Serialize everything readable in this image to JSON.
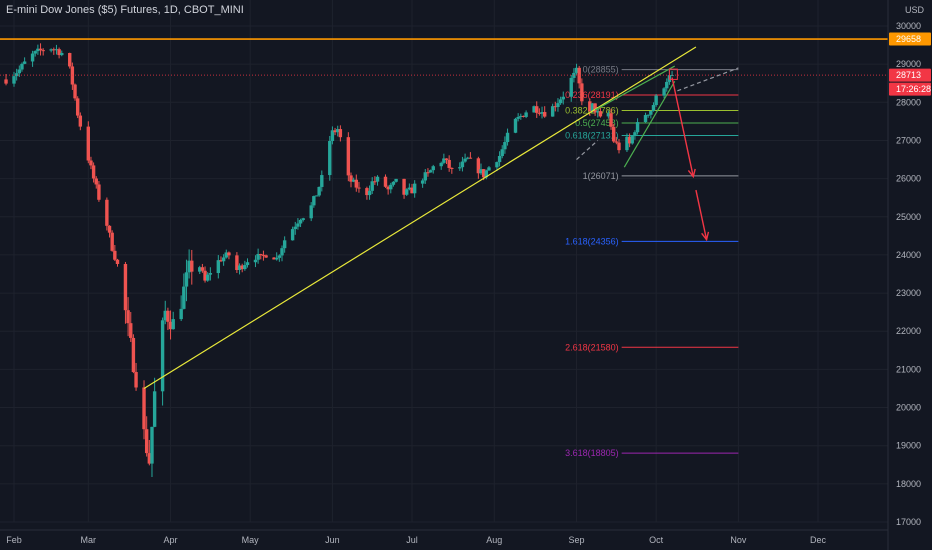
{
  "chart_data": {
    "type": "candlestick",
    "title": "E-mini Dow Jones ($5) Futures, 1D, CBOT_MINI",
    "currency": "USD",
    "ylim": [
      16900,
      30300
    ],
    "xlim": [
      0,
      297
    ],
    "grid": true,
    "y_ticks": [
      17000,
      18000,
      19000,
      20000,
      21000,
      22000,
      23000,
      24000,
      25000,
      26000,
      27000,
      28000,
      29000,
      30000
    ],
    "x_ticks": [
      {
        "label": "Feb",
        "day": 0
      },
      {
        "label": "Mar",
        "day": 28
      },
      {
        "label": "Apr",
        "day": 59
      },
      {
        "label": "May",
        "day": 89
      },
      {
        "label": "Jun",
        "day": 120
      },
      {
        "label": "Jul",
        "day": 150
      },
      {
        "label": "Aug",
        "day": 181
      },
      {
        "label": "Sep",
        "day": 212
      },
      {
        "label": "Oct",
        "day": 242
      },
      {
        "label": "Nov",
        "day": 273
      },
      {
        "label": "Dec",
        "day": 303
      }
    ],
    "anchors": [
      [
        -3,
        28600
      ],
      [
        2,
        28850
      ],
      [
        6,
        29200
      ],
      [
        10,
        29350
      ],
      [
        13,
        29450
      ],
      [
        16,
        29380
      ],
      [
        20,
        29200
      ],
      [
        22,
        28500
      ],
      [
        24,
        27700
      ],
      [
        27,
        26800
      ],
      [
        30,
        26000
      ],
      [
        32,
        25500
      ],
      [
        35,
        24800
      ],
      [
        37,
        24200
      ],
      [
        40,
        23500
      ],
      [
        43,
        22000
      ],
      [
        46,
        20800
      ],
      [
        49,
        19300
      ],
      [
        51,
        18600
      ],
      [
        52,
        19500
      ],
      [
        54,
        21200
      ],
      [
        57,
        22500
      ],
      [
        60,
        22200
      ],
      [
        63,
        22800
      ],
      [
        66,
        23600
      ],
      [
        69,
        23900
      ],
      [
        72,
        23300
      ],
      [
        75,
        23700
      ],
      [
        78,
        23900
      ],
      [
        81,
        24000
      ],
      [
        84,
        23600
      ],
      [
        87,
        23800
      ],
      [
        90,
        24000
      ],
      [
        93,
        23900
      ],
      [
        96,
        24100
      ],
      [
        99,
        23900
      ],
      [
        102,
        24400
      ],
      [
        105,
        24700
      ],
      [
        108,
        25000
      ],
      [
        111,
        25100
      ],
      [
        114,
        25600
      ],
      [
        116,
        26000
      ],
      [
        118,
        26800
      ],
      [
        120,
        27200
      ],
      [
        122,
        27300
      ],
      [
        124,
        26800
      ],
      [
        126,
        26000
      ],
      [
        129,
        25800
      ],
      [
        132,
        25500
      ],
      [
        135,
        25900
      ],
      [
        138,
        26000
      ],
      [
        141,
        25700
      ],
      [
        144,
        25900
      ],
      [
        147,
        25600
      ],
      [
        150,
        25700
      ],
      [
        153,
        26000
      ],
      [
        156,
        26100
      ],
      [
        159,
        26400
      ],
      [
        162,
        26500
      ],
      [
        165,
        26200
      ],
      [
        168,
        26300
      ],
      [
        171,
        26500
      ],
      [
        174,
        26300
      ],
      [
        177,
        26100
      ],
      [
        180,
        26400
      ],
      [
        183,
        26600
      ],
      [
        186,
        27100
      ],
      [
        189,
        27500
      ],
      [
        192,
        27700
      ],
      [
        195,
        27900
      ],
      [
        198,
        27800
      ],
      [
        201,
        27700
      ],
      [
        204,
        27950
      ],
      [
        207,
        28200
      ],
      [
        210,
        28600
      ],
      [
        212,
        28800
      ],
      [
        214,
        28100
      ],
      [
        216,
        27500
      ],
      [
        218,
        27900
      ],
      [
        220,
        27700
      ],
      [
        222,
        27400
      ],
      [
        224,
        27700
      ],
      [
        226,
        27000
      ],
      [
        228,
        26800
      ],
      [
        230,
        27100
      ],
      [
        232,
        26900
      ],
      [
        234,
        27300
      ],
      [
        236,
        27500
      ],
      [
        238,
        27700
      ],
      [
        240,
        27800
      ],
      [
        242,
        28100
      ],
      [
        244,
        28300
      ],
      [
        246,
        28600
      ],
      [
        248,
        28713
      ]
    ],
    "resistance_level": {
      "value": 29658,
      "color": "#ff9800"
    },
    "last_price": {
      "value": 28713,
      "countdown": "17:26:28",
      "color": "#f23645"
    },
    "fib_levels": [
      {
        "ratio": "0",
        "value": 28855,
        "label": "0(28855)",
        "color": "#787b86"
      },
      {
        "ratio": "0.236",
        "value": 28191,
        "label": "0.236(28191)",
        "color": "#f23645"
      },
      {
        "ratio": "0.382",
        "value": 27786,
        "label": "0.382(27786)",
        "color": "#9bbf2f"
      },
      {
        "ratio": "0.5",
        "value": 27458,
        "label": "0.5(27458)",
        "color": "#4caf50"
      },
      {
        "ratio": "0.618",
        "value": 27131,
        "label": "0.618(27131)",
        "color": "#26a69a"
      },
      {
        "ratio": "1",
        "value": 26071,
        "label": "1(26071)",
        "color": "#9598a1"
      },
      {
        "ratio": "1.618",
        "value": 24356,
        "label": "1.618(24356)",
        "color": "#2962ff"
      },
      {
        "ratio": "2.618",
        "value": 21580,
        "label": "2.618(21580)",
        "color": "#f23645"
      },
      {
        "ratio": "3.618",
        "value": 18805,
        "label": "3.618(18805)",
        "color": "#9c27b0"
      }
    ],
    "fib_range_days": [
      229,
      273
    ],
    "trendlines": [
      {
        "name": "uptrend",
        "color": "#e9e93a",
        "points": [
          [
            49,
            20500
          ],
          [
            257,
            29450
          ]
        ]
      },
      {
        "name": "wedge-upper",
        "color": "#4caf50",
        "points": [
          [
            219,
            27800
          ],
          [
            249,
            28950
          ]
        ]
      },
      {
        "name": "wedge-lower",
        "color": "#4caf50",
        "points": [
          [
            230,
            26300
          ],
          [
            249,
            28550
          ]
        ]
      },
      {
        "name": "channel-dashed-upper",
        "color": "#9598a1",
        "dashed": true,
        "points": [
          [
            250,
            28300
          ],
          [
            273,
            28900
          ]
        ]
      },
      {
        "name": "channel-dashed-left",
        "color": "#9598a1",
        "dashed": true,
        "points": [
          [
            212,
            26500
          ],
          [
            220,
            27000
          ]
        ]
      }
    ],
    "arrows": [
      {
        "name": "arrow-1",
        "color": "#f23645",
        "from": [
          248,
          28650
        ],
        "to": [
          256,
          26050
        ]
      },
      {
        "name": "arrow-2",
        "color": "#f23645",
        "from": [
          257,
          25700
        ],
        "to": [
          261,
          24400
        ]
      }
    ]
  }
}
